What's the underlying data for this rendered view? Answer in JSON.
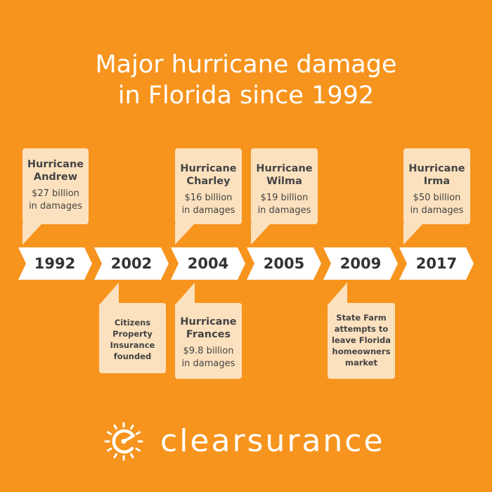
{
  "title": {
    "line1": "Major hurricane damage",
    "line2": "in Florida since 1992"
  },
  "timeline": {
    "years": [
      "1992",
      "2002",
      "2004",
      "2005",
      "2009",
      "2017"
    ],
    "above": [
      {
        "year": "1992",
        "name_line1": "Hurricane",
        "name_line2": "Andrew",
        "detail_line1": "$27 billion",
        "detail_line2": "in damages"
      },
      {
        "year": "2004",
        "name_line1": "Hurricane",
        "name_line2": "Charley",
        "detail_line1": "$16 billion",
        "detail_line2": "in damages"
      },
      {
        "year": "2005",
        "name_line1": "Hurricane",
        "name_line2": "Wilma",
        "detail_line1": "$19 billion",
        "detail_line2": "in damages"
      },
      {
        "year": "2017",
        "name_line1": "Hurricane",
        "name_line2": "Irma",
        "detail_line1": "$50 billion",
        "detail_line2": "in damages"
      }
    ],
    "below": [
      {
        "year": "2002",
        "lines": [
          "Citizens",
          "Property",
          "Insurance",
          "founded"
        ]
      },
      {
        "year": "2004",
        "name_line1": "Hurricane",
        "name_line2": "Frances",
        "detail_line1": "$9.8 billion",
        "detail_line2": "in damages"
      },
      {
        "year": "2009",
        "lines": [
          "State Farm",
          "attempts to",
          "leave Florida",
          "homeowners",
          "market"
        ]
      }
    ]
  },
  "brand": {
    "name_part1": "clear",
    "name_part2": "surance"
  },
  "colors": {
    "background": "#F7941D",
    "card": "#FCE1BE",
    "arrow": "#ffffff",
    "text_dark": "#333333"
  },
  "icons": [
    "speedometer-logo-icon"
  ]
}
